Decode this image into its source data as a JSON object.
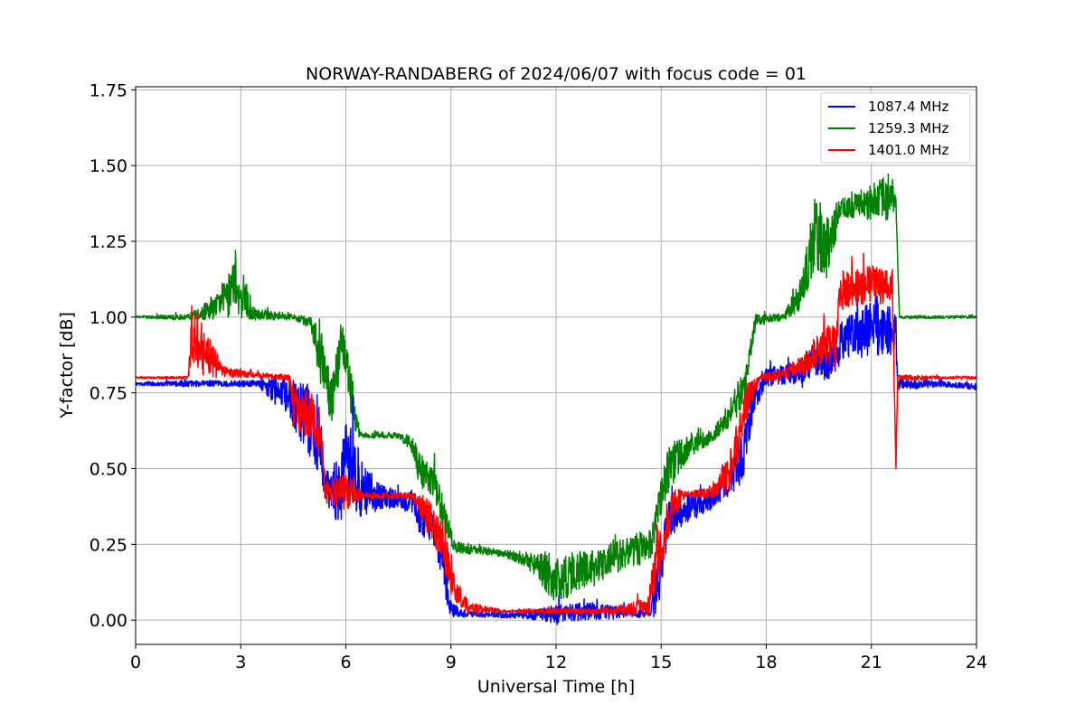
{
  "chart_data": {
    "type": "line",
    "title": "NORWAY-RANDABERG of 2024/06/07 with focus code = 01",
    "xlabel": "Universal Time [h]",
    "ylabel": "Y-factor [dB]",
    "xlim": [
      0,
      24
    ],
    "ylim": [
      -0.08,
      1.76
    ],
    "xticks": [
      0,
      3,
      6,
      9,
      12,
      15,
      18,
      21,
      24
    ],
    "xtick_labels": [
      "0",
      "3",
      "6",
      "9",
      "12",
      "15",
      "18",
      "21",
      "24"
    ],
    "yticks": [
      0.0,
      0.25,
      0.5,
      0.75,
      1.0,
      1.25,
      1.5,
      1.75
    ],
    "ytick_labels": [
      "0.00",
      "0.25",
      "0.50",
      "0.75",
      "1.00",
      "1.25",
      "1.50",
      "1.75"
    ],
    "grid": true,
    "legend_position": "top-right",
    "series": [
      {
        "name": "1087.4 MHz",
        "color": "#0000ff",
        "points": [
          [
            0,
            0.78,
            0.005
          ],
          [
            1.5,
            0.78,
            0.01
          ],
          [
            3.5,
            0.78,
            0.01
          ],
          [
            3.9,
            0.76,
            0.04
          ],
          [
            4.3,
            0.74,
            0.06
          ],
          [
            4.9,
            0.66,
            0.12
          ],
          [
            5.3,
            0.55,
            0.1
          ],
          [
            5.4,
            0.44,
            0.05
          ],
          [
            5.8,
            0.42,
            0.12
          ],
          [
            6.1,
            0.52,
            0.18
          ],
          [
            6.4,
            0.43,
            0.12
          ],
          [
            6.9,
            0.41,
            0.05
          ],
          [
            7.4,
            0.4,
            0.03
          ],
          [
            7.9,
            0.39,
            0.04
          ],
          [
            8.1,
            0.33,
            0.05
          ],
          [
            8.5,
            0.3,
            0.05
          ],
          [
            8.8,
            0.2,
            0.08
          ],
          [
            8.95,
            0.04,
            0.03
          ],
          [
            9.5,
            0.02,
            0.01
          ],
          [
            11,
            0.015,
            0.01
          ],
          [
            12,
            0.02,
            0.03
          ],
          [
            13,
            0.03,
            0.03
          ],
          [
            14.7,
            0.02,
            0.01
          ],
          [
            14.9,
            0.12,
            0.12
          ],
          [
            15.2,
            0.33,
            0.06
          ],
          [
            15.6,
            0.36,
            0.05
          ],
          [
            16.5,
            0.4,
            0.03
          ],
          [
            17.0,
            0.46,
            0.05
          ],
          [
            17.3,
            0.55,
            0.1
          ],
          [
            17.6,
            0.72,
            0.08
          ],
          [
            18.0,
            0.8,
            0.03
          ],
          [
            19.0,
            0.82,
            0.04
          ],
          [
            19.4,
            0.86,
            0.05
          ],
          [
            19.8,
            0.84,
            0.06
          ],
          [
            20.2,
            0.93,
            0.07
          ],
          [
            21.0,
            0.96,
            0.09
          ],
          [
            21.7,
            0.95,
            0.08
          ],
          [
            21.75,
            0.78,
            0.02
          ],
          [
            23,
            0.78,
            0.01
          ],
          [
            24,
            0.77,
            0.01
          ]
        ]
      },
      {
        "name": "1259.3 MHz",
        "color": "#008000",
        "points": [
          [
            0,
            1.0,
            0.003
          ],
          [
            1.5,
            1.0,
            0.01
          ],
          [
            2.3,
            1.03,
            0.04
          ],
          [
            2.9,
            1.1,
            0.1
          ],
          [
            3.4,
            1.01,
            0.02
          ],
          [
            4.5,
            1.0,
            0.01
          ],
          [
            5.0,
            0.98,
            0.02
          ],
          [
            5.3,
            0.85,
            0.1
          ],
          [
            5.6,
            0.73,
            0.08
          ],
          [
            5.9,
            0.9,
            0.08
          ],
          [
            6.2,
            0.72,
            0.08
          ],
          [
            6.4,
            0.61,
            0.01
          ],
          [
            7.5,
            0.61,
            0.01
          ],
          [
            7.9,
            0.58,
            0.03
          ],
          [
            8.1,
            0.5,
            0.06
          ],
          [
            8.5,
            0.46,
            0.05
          ],
          [
            8.8,
            0.35,
            0.06
          ],
          [
            9.1,
            0.24,
            0.02
          ],
          [
            10.5,
            0.22,
            0.01
          ],
          [
            11.2,
            0.2,
            0.03
          ],
          [
            12.0,
            0.13,
            0.08
          ],
          [
            13.0,
            0.18,
            0.06
          ],
          [
            14.0,
            0.22,
            0.05
          ],
          [
            14.7,
            0.25,
            0.06
          ],
          [
            15.2,
            0.5,
            0.08
          ],
          [
            15.7,
            0.57,
            0.05
          ],
          [
            16.5,
            0.61,
            0.02
          ],
          [
            17.0,
            0.69,
            0.05
          ],
          [
            17.4,
            0.78,
            0.06
          ],
          [
            17.7,
            0.99,
            0.02
          ],
          [
            18.5,
            1.0,
            0.01
          ],
          [
            19.0,
            1.08,
            0.06
          ],
          [
            19.4,
            1.28,
            0.12
          ],
          [
            19.8,
            1.22,
            0.1
          ],
          [
            20.1,
            1.36,
            0.03
          ],
          [
            21.0,
            1.38,
            0.06
          ],
          [
            21.5,
            1.4,
            0.08
          ],
          [
            21.7,
            1.38,
            0.02
          ],
          [
            21.8,
            1.0,
            0.005
          ],
          [
            24,
            1.0,
            0.005
          ]
        ]
      },
      {
        "name": "1401.0 MHz",
        "color": "#ff0000",
        "points": [
          [
            0,
            0.8,
            0.003
          ],
          [
            1.5,
            0.8,
            0.005
          ],
          [
            1.6,
            0.95,
            0.1
          ],
          [
            2.0,
            0.88,
            0.08
          ],
          [
            2.5,
            0.82,
            0.02
          ],
          [
            3.2,
            0.81,
            0.01
          ],
          [
            4.4,
            0.8,
            0.01
          ],
          [
            4.5,
            0.7,
            0.08
          ],
          [
            5.0,
            0.68,
            0.08
          ],
          [
            5.3,
            0.6,
            0.08
          ],
          [
            5.4,
            0.43,
            0.03
          ],
          [
            6.0,
            0.42,
            0.06
          ],
          [
            6.5,
            0.41,
            0.01
          ],
          [
            7.9,
            0.41,
            0.01
          ],
          [
            8.3,
            0.35,
            0.06
          ],
          [
            8.8,
            0.25,
            0.08
          ],
          [
            9.0,
            0.12,
            0.06
          ],
          [
            9.5,
            0.04,
            0.02
          ],
          [
            10.5,
            0.03,
            0.005
          ],
          [
            12.0,
            0.03,
            0.01
          ],
          [
            13.5,
            0.03,
            0.01
          ],
          [
            14.6,
            0.04,
            0.03
          ],
          [
            14.9,
            0.2,
            0.1
          ],
          [
            15.3,
            0.38,
            0.06
          ],
          [
            15.7,
            0.415,
            0.01
          ],
          [
            16.5,
            0.42,
            0.02
          ],
          [
            17.0,
            0.5,
            0.08
          ],
          [
            17.4,
            0.7,
            0.08
          ],
          [
            17.8,
            0.8,
            0.01
          ],
          [
            18.5,
            0.81,
            0.02
          ],
          [
            19.2,
            0.85,
            0.04
          ],
          [
            19.6,
            0.92,
            0.07
          ],
          [
            20.0,
            0.9,
            0.08
          ],
          [
            20.1,
            1.08,
            0.07
          ],
          [
            21.0,
            1.11,
            0.06
          ],
          [
            21.6,
            1.1,
            0.07
          ],
          [
            21.7,
            0.5,
            0.0
          ],
          [
            21.75,
            0.8,
            0.01
          ],
          [
            23,
            0.8,
            0.005
          ],
          [
            24,
            0.8,
            0.005
          ]
        ]
      }
    ]
  }
}
